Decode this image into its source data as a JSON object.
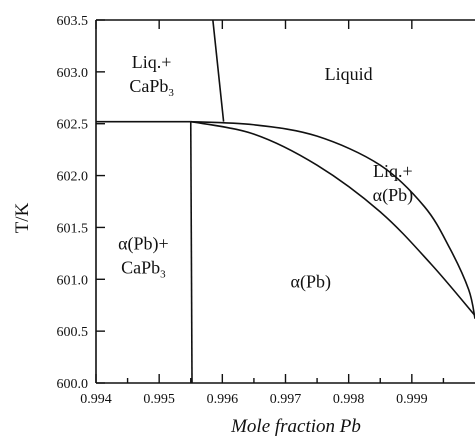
{
  "chart_data": {
    "type": "line",
    "title": "",
    "xlabel": "Mole fraction Pb",
    "ylabel": "T/K",
    "xlim": [
      0.994,
      1.0
    ],
    "ylim": [
      600.0,
      603.5
    ],
    "x_ticks": [
      "0.994",
      "0.995",
      "0.996",
      "0.997",
      "0.998",
      "0.999"
    ],
    "y_ticks": [
      "600.0",
      "600.5",
      "601.0",
      "601.5",
      "602.0",
      "602.5",
      "603.0",
      "603.5"
    ],
    "x_tick_values": [
      0.994,
      0.995,
      0.996,
      0.997,
      0.998,
      0.999
    ],
    "y_tick_values": [
      600.0,
      600.5,
      601.0,
      601.5,
      602.0,
      602.5,
      603.0,
      603.5
    ],
    "grid": false,
    "series": [
      {
        "kind": "eutectic-isotherm",
        "x": [
          0.994,
          0.9955
        ],
        "y": [
          602.52,
          602.52
        ]
      },
      {
        "kind": "CaPb3-liquidus",
        "x": [
          0.99585,
          0.99602
        ],
        "y": [
          603.5,
          602.52
        ]
      },
      {
        "kind": "alpha-Pb-liquidus",
        "x": [
          0.9955,
          0.9965,
          0.9975,
          0.9985,
          0.9992,
          0.9996,
          0.9999,
          1.0
        ],
        "y": [
          602.52,
          602.49,
          602.38,
          602.1,
          601.7,
          601.3,
          600.9,
          600.62
        ]
      },
      {
        "kind": "alpha-Pb-solidus",
        "x": [
          0.9955,
          0.9965,
          0.9975,
          0.9985,
          0.9993,
          1.0
        ],
        "y": [
          602.52,
          602.4,
          602.1,
          601.65,
          601.15,
          600.65
        ]
      },
      {
        "kind": "alpha-Pb-solvus",
        "x": [
          0.9955,
          0.99552
        ],
        "y": [
          602.52,
          600.0
        ]
      }
    ],
    "region_labels": [
      {
        "id": "liq-capb3",
        "text": "Liq.+",
        "sub": "CaPb",
        "subscript": "3",
        "x": 0.99488,
        "y": 603.0
      },
      {
        "id": "liquid",
        "text": "Liquid",
        "x": 0.998,
        "y": 602.98
      },
      {
        "id": "liq-alpha",
        "text": "Liq.+",
        "line2": "α(Pb)",
        "x": 0.9987,
        "y": 601.95
      },
      {
        "id": "alpha-capb3",
        "text": "α(Pb)+",
        "sub": "CaPb",
        "subscript": "3",
        "x": 0.99475,
        "y": 601.25
      },
      {
        "id": "alpha",
        "text": "α(Pb)",
        "x": 0.9974,
        "y": 600.98
      }
    ]
  }
}
